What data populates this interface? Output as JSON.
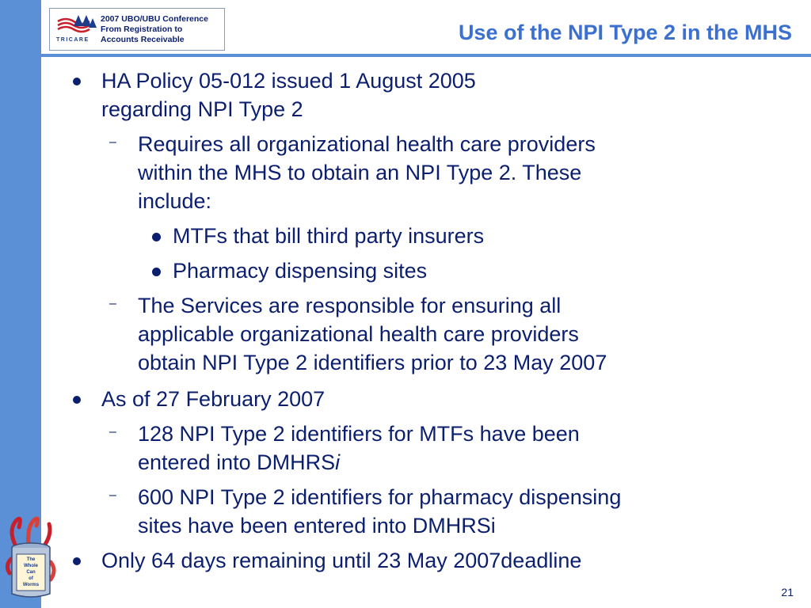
{
  "header": {
    "logo_label": "TRICARE",
    "logo_lines": [
      "2007 UBO/UBU Conference",
      "From Registration to",
      "Accounts Receivable"
    ],
    "title": "Use of the NPI Type 2 in the MHS"
  },
  "bullets": {
    "b1": [
      "HA Policy 05-012 issued 1 August 2005",
      "regarding NPI Type 2"
    ],
    "b1_s1": [
      "Requires all organizational health care providers",
      "within the MHS to obtain an NPI Type 2.  These",
      "include:"
    ],
    "b1_s1_a": "MTFs that bill third party insurers",
    "b1_s1_b": "Pharmacy dispensing sites",
    "b1_s2": [
      "The Services are responsible for ensuring all",
      "applicable organizational health care providers",
      "obtain NPI Type 2 identifiers prior to 23 May 2007"
    ],
    "b2": "As of 27 February 2007",
    "b2_s1_line1": "128 NPI Type 2 identifiers for MTFs have been",
    "b2_s1_line2_main": "entered into DMHRS",
    "b2_s1_line2_italic": "i",
    "b2_s2": [
      "600 NPI Type 2 identifiers for pharmacy dispensing",
      "sites have been entered into DMHRSi"
    ],
    "b3": "Only 64 days remaining until 23 May 2007deadline"
  },
  "dash_marker": "–",
  "worm_art_lines": [
    "The",
    "Whole",
    "Can",
    "of",
    "Worms"
  ],
  "page_number": "21",
  "colors": {
    "side_bar": "#5b8fd6",
    "title": "#3b6fd0",
    "text": "#0b1f6e"
  }
}
